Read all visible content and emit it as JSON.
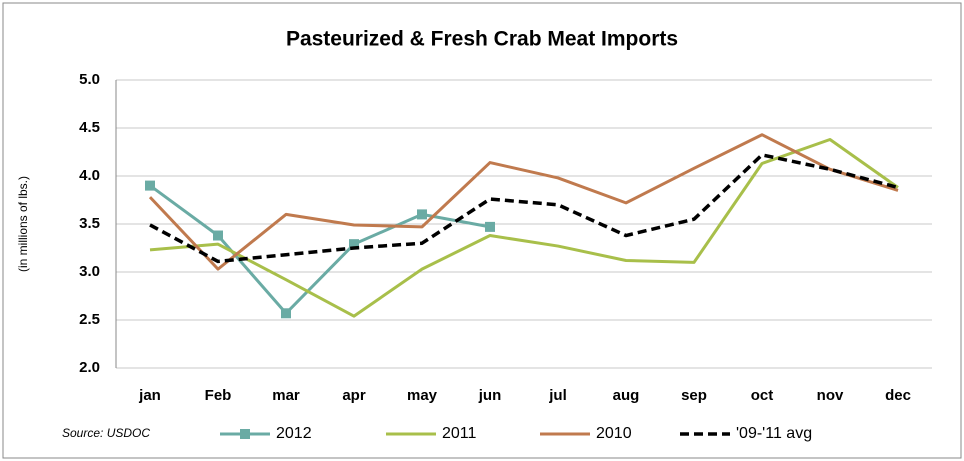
{
  "chart_data": {
    "type": "line",
    "title": "Pasteurized & Fresh Crab Meat Imports",
    "y_label": "(in millions of lbs.)",
    "source": "Source: USDOC",
    "categories": [
      "jan",
      "Feb",
      "mar",
      "apr",
      "may",
      "jun",
      "jul",
      "aug",
      "sep",
      "oct",
      "nov",
      "dec"
    ],
    "ylim": [
      2.0,
      5.0
    ],
    "yticks": [
      {
        "value": 2.0,
        "label": "2.0"
      },
      {
        "value": 2.5,
        "label": "2.5"
      },
      {
        "value": 3.0,
        "label": "3.0"
      },
      {
        "value": 3.5,
        "label": "3.5"
      },
      {
        "value": 4.0,
        "label": "4.0"
      },
      {
        "value": 4.5,
        "label": "4.5"
      },
      {
        "value": 5.0,
        "label": "5.0"
      }
    ],
    "grid": true,
    "series": [
      {
        "name": "2012",
        "color": "#6aaba4",
        "marker": "square",
        "values": [
          3.9,
          3.38,
          2.57,
          3.29,
          3.6,
          3.47,
          null,
          null,
          null,
          null,
          null,
          null
        ]
      },
      {
        "name": "2011",
        "color": "#a8bf4a",
        "values": [
          3.23,
          3.29,
          2.92,
          2.54,
          3.03,
          3.38,
          3.27,
          3.12,
          3.1,
          4.13,
          4.38,
          3.88
        ]
      },
      {
        "name": "2010",
        "color": "#c07a4e",
        "values": [
          3.78,
          3.03,
          3.6,
          3.49,
          3.47,
          4.14,
          3.98,
          3.72,
          4.08,
          4.43,
          4.07,
          3.85
        ]
      },
      {
        "name": "'09-'11 avg",
        "color": "#000000",
        "dashed": true,
        "values": [
          3.49,
          3.11,
          3.18,
          3.25,
          3.3,
          3.76,
          3.7,
          3.38,
          3.55,
          4.22,
          4.07,
          3.88
        ]
      }
    ]
  }
}
